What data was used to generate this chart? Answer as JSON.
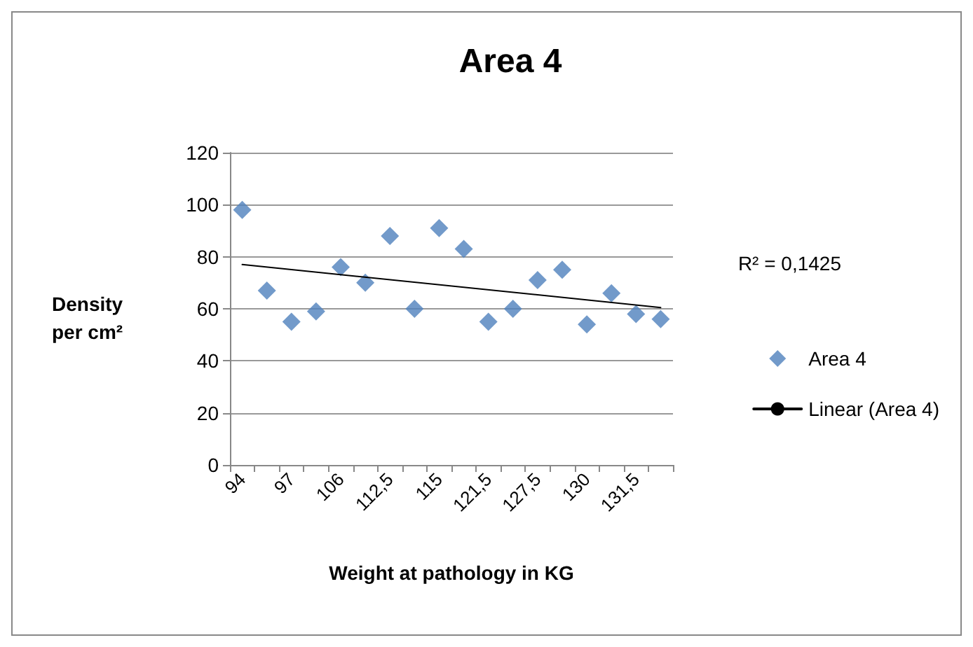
{
  "chart_data": {
    "type": "scatter",
    "title": "Area 4",
    "xlabel": "Weight at pathology in KG",
    "ylabel": "Density per cm²",
    "categories": [
      "94",
      null,
      "97",
      null,
      "106",
      null,
      "112,5",
      null,
      "115",
      null,
      "121,5",
      null,
      "127,5",
      null,
      "130",
      null,
      "131,5",
      null
    ],
    "series": [
      {
        "name": "Area 4",
        "color": "#4f81bd",
        "marker": "diamond",
        "values": [
          98,
          67,
          55,
          59,
          76,
          70,
          88,
          60,
          91,
          83,
          55,
          60,
          71,
          75,
          54,
          66,
          58,
          56
        ]
      },
      {
        "name": "Linear (Area 4)",
        "type": "line",
        "color": "#000000",
        "marker": "none",
        "line_style": "solid",
        "values": [
          77,
          null,
          null,
          null,
          null,
          null,
          null,
          null,
          null,
          null,
          null,
          null,
          null,
          null,
          null,
          null,
          null,
          60.5
        ]
      }
    ],
    "ylim": [
      0,
      120
    ],
    "yticks": [
      0,
      20,
      40,
      60,
      80,
      100,
      120
    ],
    "grid": "y",
    "legend": "right",
    "annotations": [
      "R² = 0,1425"
    ]
  }
}
